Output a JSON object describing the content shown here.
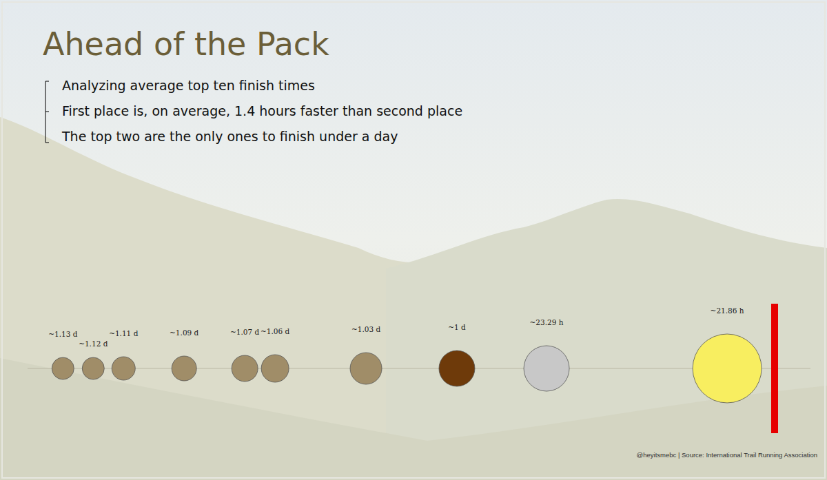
{
  "chart_data": {
    "type": "bubble",
    "title": "Ahead of the Pack",
    "annotations": [
      "Analyzing average top ten finish times",
      "First place is, on average, 1.4 hours faster than second place",
      "The top two are the only ones to finish under a day"
    ],
    "source": "@heyitsmebc | Source: International Trail Running Association",
    "categories": [
      null,
      null,
      null,
      null,
      null,
      null,
      null,
      null,
      null,
      null
    ],
    "values": [
      27.12,
      26.88,
      26.64,
      26.16,
      25.68,
      25.44,
      24.72,
      24,
      23.29,
      21.86
    ],
    "value_labels": [
      "~1.13 d",
      "~1.12 d",
      "~1.11 d",
      "~1.09 d",
      "~1.07 d",
      "~1.06 d",
      "~1.03 d",
      "~1 d",
      "~23.29 h",
      "~21.86 h"
    ],
    "sizes": [
      32,
      32,
      34,
      36,
      38,
      40,
      46,
      52,
      66,
      100
    ],
    "colors": [
      "#a08d68",
      "#a08d68",
      "#a08d68",
      "#a08d68",
      "#a08d68",
      "#a08d68",
      "#a08d68",
      "#6e3a0a",
      "#c8c8c8",
      "#f8ee60"
    ],
    "xlim": [
      27.4,
      21.2
    ],
    "xticks": [],
    "tick_labels": false,
    "data_labels": true,
    "grid": false
  }
}
